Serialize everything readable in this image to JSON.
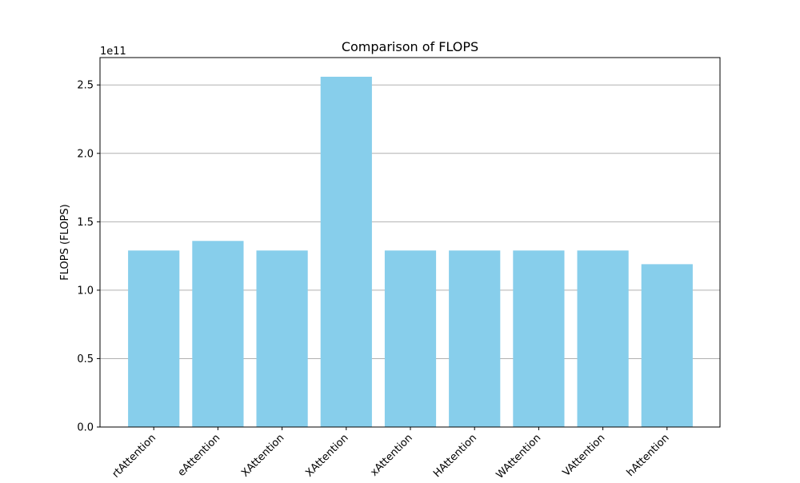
{
  "chart_data": {
    "type": "bar",
    "title": "Comparison of FLOPS",
    "xlabel": "",
    "ylabel": "FLOPS (FLOPS)",
    "offset_label": "1e11",
    "categories": [
      "rtAttention",
      "eAttention",
      "XAttention",
      "XAttention",
      "xAttention",
      "HAttention",
      "WAttention",
      "VAttention",
      "hAttention"
    ],
    "values": [
      1.29,
      1.36,
      1.29,
      2.56,
      1.29,
      1.29,
      1.29,
      1.29,
      1.19
    ],
    "value_scale": 100000000000,
    "ylim": [
      0,
      2.7
    ],
    "yticks": [
      "0.0",
      "0.5",
      "1.0",
      "1.5",
      "2.0",
      "2.5"
    ],
    "ytick_values": [
      0,
      0.5,
      1.0,
      1.5,
      2.0,
      2.5
    ],
    "grid": "y",
    "legend": "none",
    "bar_color": "#87ceeb",
    "grid_color": "#b0b0b0"
  }
}
